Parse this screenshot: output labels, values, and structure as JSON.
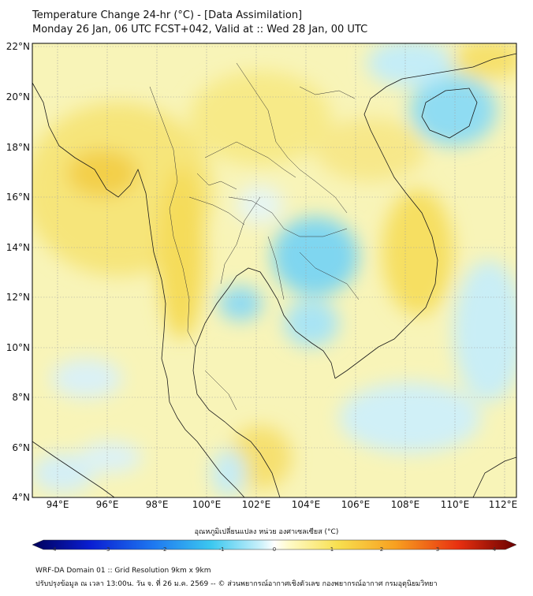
{
  "header": {
    "title": "Temperature Change 24-hr (°C) - [Data Assimilation]",
    "subtitle": "Monday 26 Jan, 06 UTC FCST+042, Valid at :: Wed 28 Jan, 00 UTC"
  },
  "map": {
    "lat_labels": [
      "22°N",
      "20°N",
      "18°N",
      "16°N",
      "14°N",
      "12°N",
      "10°N",
      "8°N",
      "6°N",
      "4°N"
    ],
    "lon_labels": [
      "94°E",
      "96°E",
      "98°E",
      "100°E",
      "102°E",
      "104°E",
      "106°E",
      "108°E",
      "110°E",
      "112°E"
    ],
    "lat_range": [
      4,
      22
    ],
    "lon_range": [
      93,
      112.5
    ],
    "colors": {
      "land_warm": "#f5f0a0",
      "cool": "#3fc6ee",
      "warm": "#f8c820"
    }
  },
  "colorbar": {
    "title": "อุณหภูมิเปลี่ยนแปลง หน่วย องศาเซลเซียส (°C)",
    "ticks": [
      "-4",
      "-3",
      "-2",
      "-1",
      "0",
      "1",
      "2",
      "3",
      "4"
    ],
    "min": -4,
    "max": 4
  },
  "footer": {
    "line1": "WRF-DA Domain 01 :: Grid Resolution 9km x 9km",
    "line2": "ปรับปรุงข้อมูล ณ เวลา 13:00น. วัน จ. ที่ 26 ม.ค. 2569 -- © ส่วนพยากรณ์อากาศเชิงตัวเลข กองพยากรณ์อากาศ กรมอุตุนิยมวิทยา"
  }
}
